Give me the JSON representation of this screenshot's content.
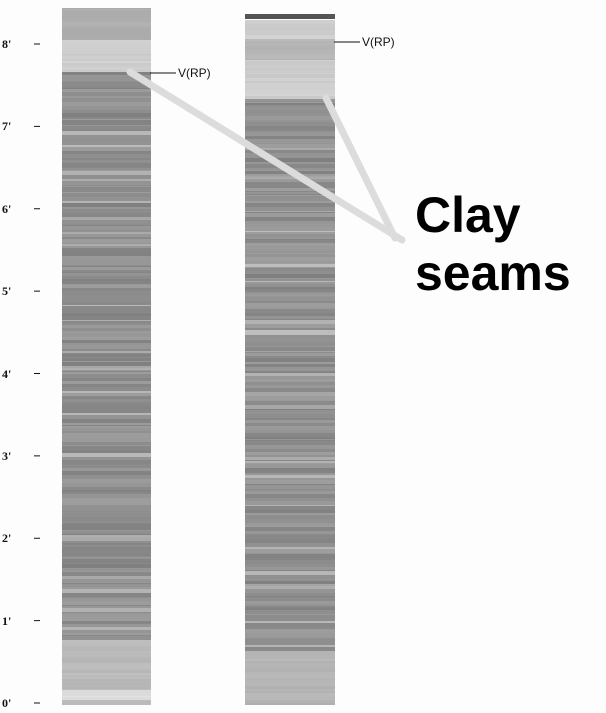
{
  "depth_axis": {
    "tick_labels": [
      "0'",
      "1'",
      "2'",
      "3'",
      "4'",
      "5'",
      "6'",
      "7'",
      "8'"
    ]
  },
  "profiles": [
    {
      "marker_label": "V(RP)"
    },
    {
      "marker_label": "V(RP)"
    }
  ],
  "callout": {
    "line1": "Clay",
    "line2": "seams"
  },
  "colors": {
    "background": "#fdfdfd",
    "strip_mid": "#8c8c8c",
    "strip_light": "#d8d8d8",
    "pointer_line": "#e8e8e8",
    "top_cap": "#555555"
  }
}
